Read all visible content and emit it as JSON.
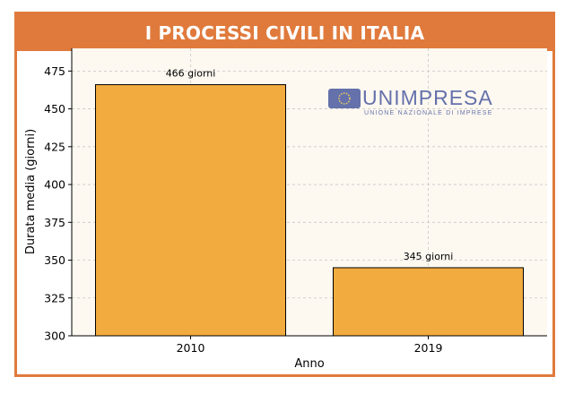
{
  "header": {
    "title": "I PROCESSI CIVILI IN ITALIA"
  },
  "logo": {
    "name": "UNIMPRESA",
    "tagline": "UNIONE NAZIONALE DI IMPRESE",
    "color": "#4a5aa0"
  },
  "colors": {
    "accent": "#e07a3c",
    "bar": "#f2ab3f",
    "plot_bg": "#fdf8f0"
  },
  "chart_data": {
    "type": "bar",
    "categories": [
      "2010",
      "2019"
    ],
    "values": [
      466,
      345
    ],
    "data_labels": [
      "466 giorni",
      "345 giorni"
    ],
    "title": "I PROCESSI CIVILI IN ITALIA",
    "xlabel": "Anno",
    "ylabel": "Durata media (giorni)",
    "ylim": [
      300,
      490
    ],
    "yticks": [
      300,
      325,
      350,
      375,
      400,
      425,
      450,
      475
    ],
    "grid": true
  }
}
